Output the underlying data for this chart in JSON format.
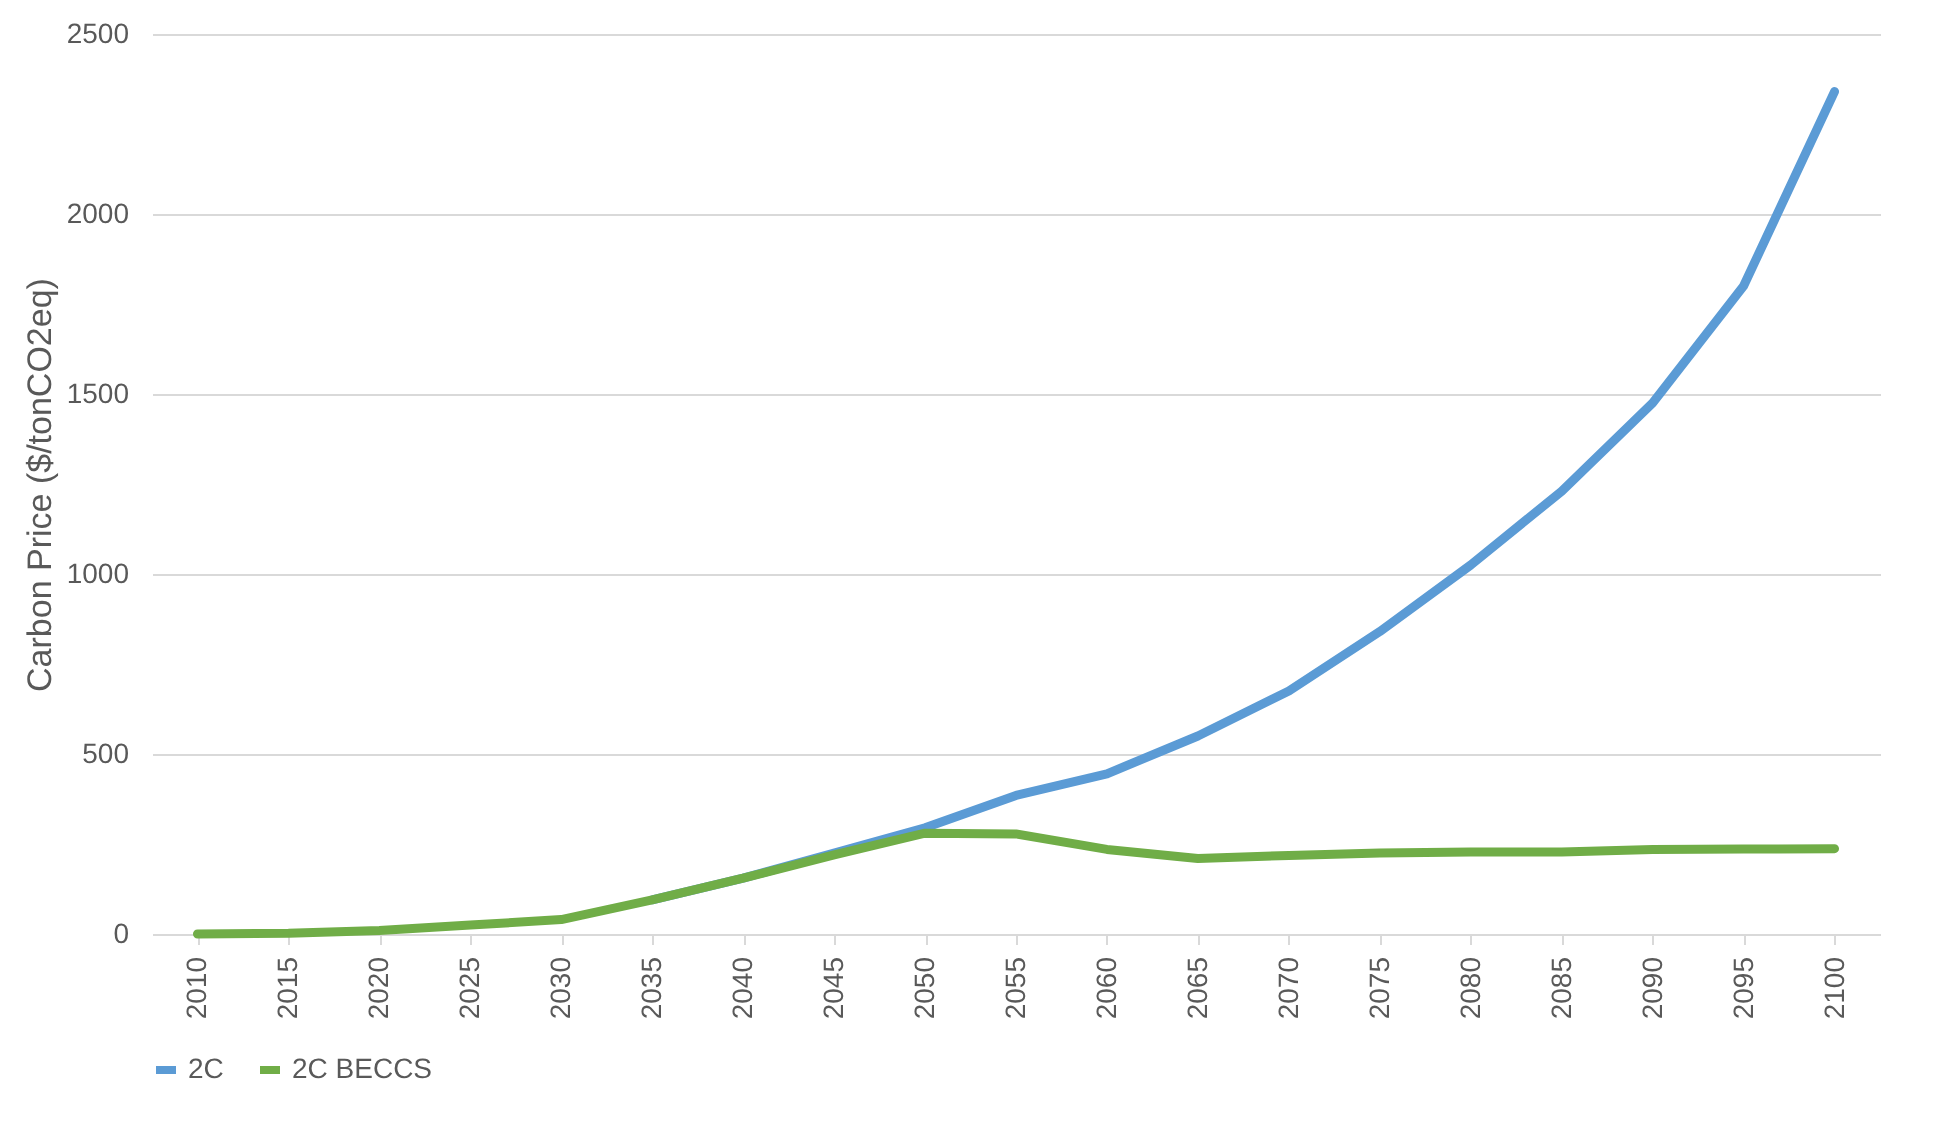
{
  "chart_data": {
    "type": "line",
    "ylabel": "Carbon Price ($/tonCO2eq)",
    "categories": [
      "2010",
      "2015",
      "2020",
      "2025",
      "2030",
      "2035",
      "2040",
      "2045",
      "2050",
      "2055",
      "2060",
      "2065",
      "2070",
      "2075",
      "2080",
      "2085",
      "2090",
      "2095",
      "2100"
    ],
    "series": [
      {
        "name": "2C",
        "color": "#5b9bd5",
        "values": [
          null,
          null,
          null,
          null,
          null,
          95,
          155,
          225,
          295,
          385,
          445,
          550,
          675,
          840,
          1025,
          1230,
          1475,
          1800,
          2340
        ]
      },
      {
        "name": "2C BECCS",
        "color": "#70ad47",
        "values": [
          0,
          2,
          10,
          25,
          40,
          95,
          155,
          220,
          280,
          278,
          235,
          210,
          218,
          225,
          228,
          228,
          235,
          236,
          237
        ]
      }
    ],
    "ylim": [
      0,
      2500
    ],
    "yticks": [
      0,
      500,
      1000,
      1500,
      2000,
      2500
    ],
    "grid": "y",
    "legend": "bottom",
    "marker": "none",
    "line_style": "solid"
  }
}
